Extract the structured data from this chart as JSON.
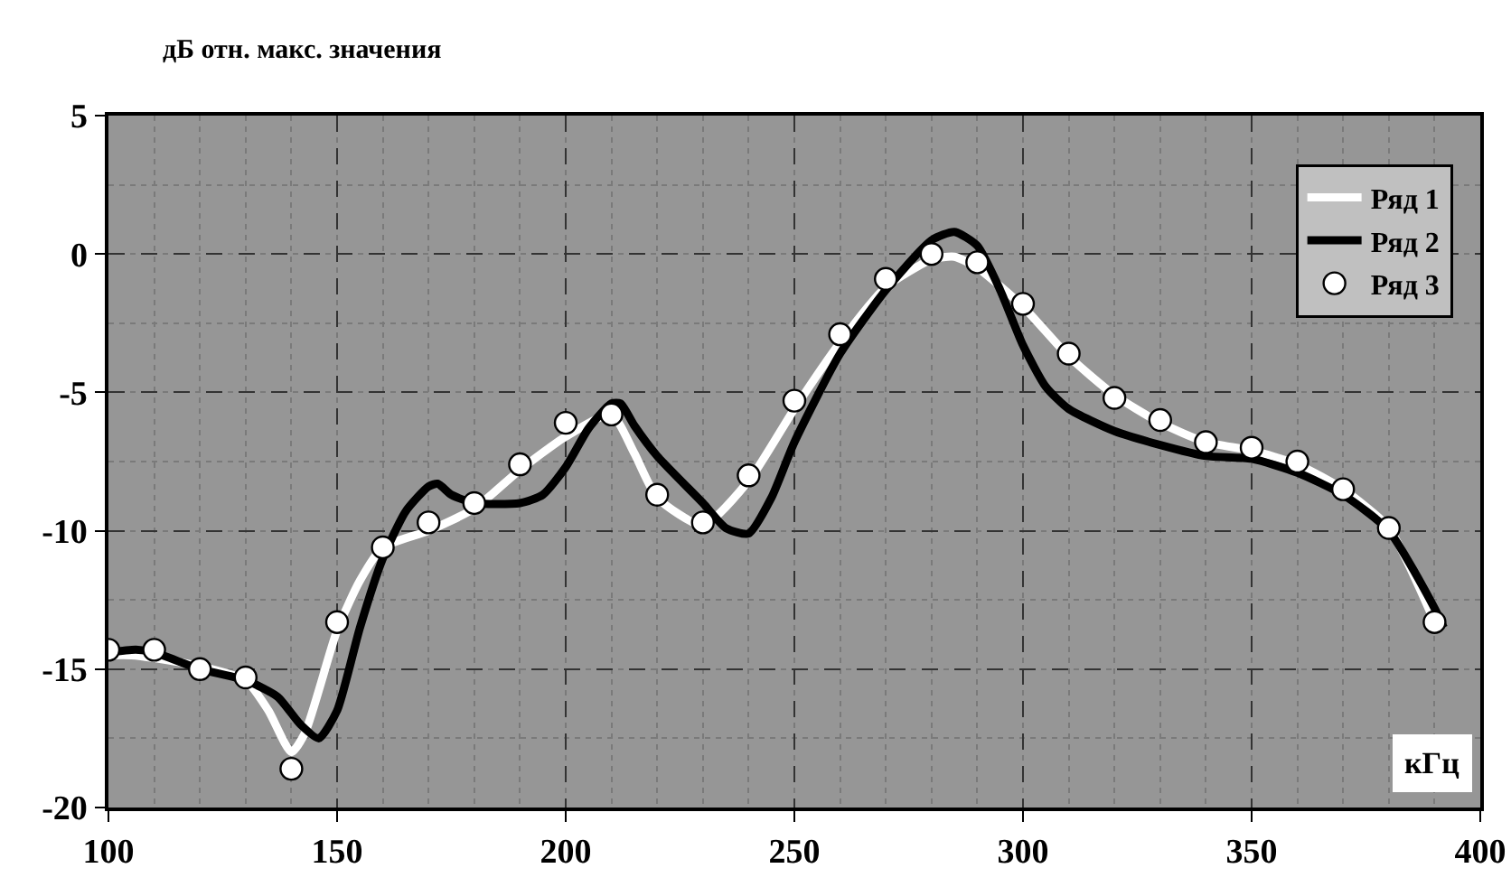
{
  "chart_data": {
    "type": "line",
    "ylabel": "дБ отн. макс. значения",
    "xlabel": "кГц",
    "xlim": [
      100,
      400
    ],
    "xticks": [
      100,
      150,
      200,
      250,
      300,
      350,
      400
    ],
    "ylim": [
      -20,
      5
    ],
    "yticks": [
      -20,
      -15,
      -10,
      -5,
      0,
      5
    ],
    "grid": true,
    "legend": "top right",
    "marker": "none",
    "line_style": "solid",
    "series": [
      {
        "name": "Ряд 1",
        "color": "#ffffff",
        "x": [
          100,
          105,
          110,
          120,
          130,
          135,
          140,
          143,
          150,
          155,
          160,
          170,
          180,
          190,
          200,
          210,
          215,
          220,
          230,
          240,
          250,
          260,
          270,
          280,
          285,
          290,
          300,
          310,
          320,
          330,
          340,
          350,
          360,
          370,
          380,
          390
        ],
        "values": [
          -14.5,
          -14.5,
          -14.6,
          -14.9,
          -15.4,
          -16.5,
          -18.0,
          -17.3,
          -13.6,
          -11.8,
          -10.6,
          -10.0,
          -9.2,
          -7.8,
          -6.6,
          -5.8,
          -7.2,
          -8.8,
          -9.8,
          -8.2,
          -5.6,
          -3.2,
          -1.2,
          -0.2,
          -0.1,
          -0.5,
          -1.9,
          -3.7,
          -5.1,
          -6.1,
          -6.8,
          -7.1,
          -7.6,
          -8.5,
          -9.9,
          -13.3
        ]
      },
      {
        "name": "Ряд 2",
        "color": "#000000",
        "x": [
          100,
          106,
          110,
          120,
          130,
          137,
          142,
          146,
          150,
          155,
          160,
          165,
          170,
          172,
          175,
          180,
          190,
          195,
          200,
          205,
          210,
          212,
          215,
          220,
          230,
          235,
          240,
          245,
          250,
          260,
          270,
          280,
          285,
          290,
          295,
          300,
          305,
          310,
          320,
          330,
          340,
          350,
          360,
          370,
          380,
          390,
          392
        ],
        "values": [
          -14.4,
          -14.3,
          -14.4,
          -15.0,
          -15.4,
          -16.0,
          -17.0,
          -17.5,
          -16.5,
          -13.5,
          -11.0,
          -9.3,
          -8.4,
          -8.3,
          -8.7,
          -9.0,
          -9.0,
          -8.7,
          -7.7,
          -6.3,
          -5.4,
          -5.4,
          -6.2,
          -7.3,
          -9.0,
          -9.9,
          -10.1,
          -8.8,
          -6.8,
          -3.6,
          -1.3,
          0.5,
          0.8,
          0.3,
          -1.3,
          -3.3,
          -4.8,
          -5.6,
          -6.4,
          -6.9,
          -7.3,
          -7.4,
          -7.9,
          -8.7,
          -10.0,
          -12.8,
          -13.5
        ]
      },
      {
        "name": "Ряд 3",
        "type": "scatter",
        "marker": "circle",
        "color": "#ffffff",
        "x": [
          100,
          110,
          120,
          130,
          140,
          150,
          160,
          170,
          180,
          190,
          200,
          210,
          220,
          230,
          240,
          250,
          260,
          270,
          280,
          290,
          300,
          310,
          320,
          330,
          340,
          350,
          360,
          370,
          380,
          390
        ],
        "values": [
          -14.3,
          -14.3,
          -15.0,
          -15.3,
          -18.6,
          -13.3,
          -10.6,
          -9.7,
          -9.0,
          -7.6,
          -6.1,
          -5.8,
          -8.7,
          -9.7,
          -8.0,
          -5.3,
          -2.9,
          -0.9,
          0.0,
          -0.3,
          -1.8,
          -3.6,
          -5.2,
          -6.0,
          -6.8,
          -7.0,
          -7.5,
          -8.5,
          -9.9,
          -13.3
        ]
      }
    ]
  }
}
